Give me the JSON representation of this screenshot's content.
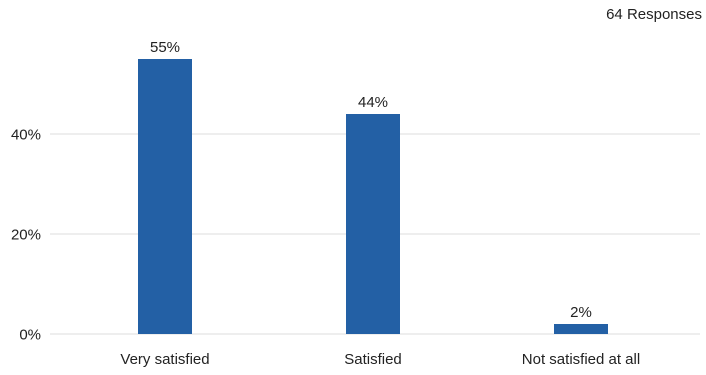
{
  "header": {
    "responses_label": "64 Responses"
  },
  "colors": {
    "bar": "#2360a5",
    "grid": "#dddddd",
    "text": "#222222"
  },
  "chart_data": {
    "type": "bar",
    "title": "",
    "xlabel": "",
    "ylabel": "",
    "categories": [
      "Very satisfied",
      "Satisfied",
      "Not satisfied at all"
    ],
    "values": [
      55,
      44,
      2
    ],
    "value_labels": [
      "55%",
      "44%",
      "2%"
    ],
    "y_ticks": [
      0,
      20,
      40
    ],
    "y_tick_labels": [
      "0%",
      "20%",
      "40%"
    ],
    "ylim": [
      0,
      60
    ],
    "y_unit": "%",
    "grid": true,
    "legend": "none"
  }
}
